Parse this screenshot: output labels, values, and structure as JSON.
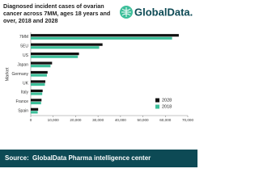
{
  "chart_data": {
    "type": "hbar",
    "title": "Diagnosed incident cases of ovarian cancer across 7MM, ages 18 years and over, 2018 and 2028",
    "logo": "GlobalData.",
    "y_label": "Market",
    "categories": [
      "7MM",
      "5EU",
      "US",
      "Japan",
      "Germany",
      "UK",
      "Italy",
      "France",
      "Spain"
    ],
    "series": [
      {
        "name": "2028",
        "color": "#111111",
        "values": [
          66000,
          32000,
          21500,
          9500,
          7500,
          6500,
          5300,
          4800,
          3300
        ]
      },
      {
        "name": "2018",
        "color": "#3dbf9a",
        "values": [
          63000,
          30500,
          21000,
          8800,
          7200,
          6300,
          5100,
          4600,
          3100
        ]
      }
    ],
    "xlim": [
      0,
      70000
    ],
    "xticks": [
      0,
      {
        "value": 10000,
        "label": "10,000"
      },
      {
        "value": 20000,
        "label": "20,000"
      },
      {
        "value": 30000,
        "label": "30,000"
      },
      {
        "value": 40000,
        "label": "40,000"
      },
      {
        "value": 50000,
        "label": "50,000"
      },
      {
        "value": 60000,
        "label": "60,000"
      },
      {
        "value": 70000,
        "label": "70,000"
      }
    ],
    "legend": "lower right",
    "source_label": "Source:",
    "source": "GlobalData Pharma intelligence center",
    "footer_color": "#0d4a55"
  }
}
